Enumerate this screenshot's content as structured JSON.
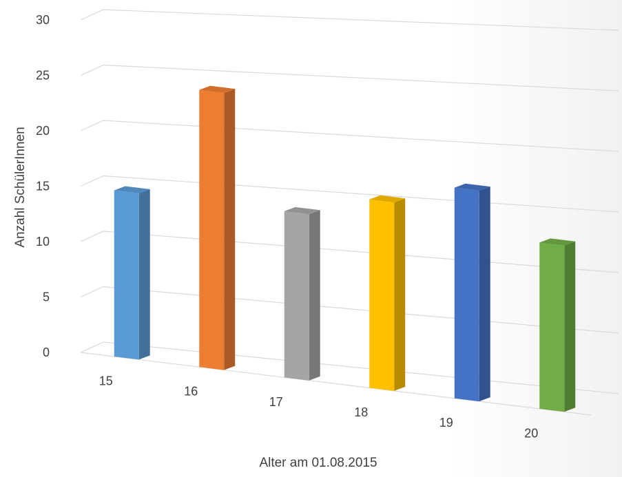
{
  "chart_data": {
    "type": "bar",
    "title": "",
    "xlabel": "Alter am 01.08.2015",
    "ylabel": "Anzahl SchülerInnen",
    "categories": [
      "15",
      "16",
      "17",
      "18",
      "19",
      "20"
    ],
    "values": [
      15,
      25,
      15,
      17,
      19,
      15
    ],
    "ylim": [
      0,
      30
    ],
    "yticks": [
      "0",
      "5",
      "10",
      "15",
      "20",
      "25",
      "30"
    ],
    "grid": true,
    "legend": "none",
    "three_d": true,
    "colors": [
      "#5B9BD5",
      "#ED7D31",
      "#A5A5A5",
      "#FFC000",
      "#4472C4",
      "#70AD47"
    ]
  }
}
